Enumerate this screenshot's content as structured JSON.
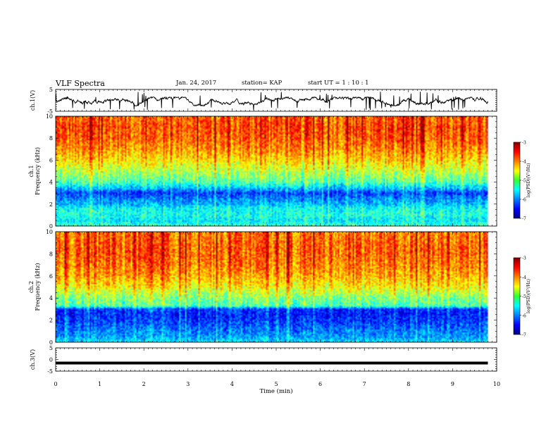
{
  "header": {
    "title": "VLF Spectra",
    "date": "Jan. 24, 2017",
    "station": "station= KAP",
    "start_ut": "start  UT =   1 : 10 : 1"
  },
  "chart_data": [
    {
      "type": "line",
      "panel": "ch1-waveform",
      "ylabel": "ch.1(V)",
      "ylim": [
        -5,
        5
      ],
      "yticks": [
        "5",
        "-5"
      ],
      "xlim": [
        0,
        10
      ],
      "data_extent_min": [
        0,
        9.8
      ],
      "description_values": {
        "typical_range_v": [
          -2.5,
          1.5
        ]
      }
    },
    {
      "type": "heatmap",
      "panel": "ch1-spectrogram",
      "ylabel": "ch.1\nFrequency (kHz)",
      "ylim": [
        0,
        10
      ],
      "yticks": [
        "0",
        "2",
        "4",
        "6",
        "8",
        "10"
      ],
      "xlim": [
        0,
        10
      ],
      "data_extent_min": [
        0,
        9.8
      ],
      "colorbar": {
        "label": "log(PSD)(V²/Hz)",
        "range": [
          -7,
          -3
        ],
        "ticks": [
          "-3",
          "-4",
          "-5",
          "-6",
          "-7"
        ]
      },
      "profile_khz_logpsd": [
        [
          0,
          -5.3
        ],
        [
          0.5,
          -5.6
        ],
        [
          1,
          -5.4
        ],
        [
          1.6,
          -5.5
        ],
        [
          2,
          -5.8
        ],
        [
          2.5,
          -6.0
        ],
        [
          3,
          -6.3
        ],
        [
          3.5,
          -5.7
        ],
        [
          4,
          -5.2
        ],
        [
          5,
          -4.8
        ],
        [
          6,
          -4.4
        ],
        [
          7,
          -4.1
        ],
        [
          8,
          -3.9
        ],
        [
          9,
          -3.8
        ],
        [
          10,
          -3.9
        ]
      ]
    },
    {
      "type": "heatmap",
      "panel": "ch2-spectrogram",
      "ylabel": "ch.2\nFrequency (kHz)",
      "ylim": [
        0,
        10
      ],
      "yticks": [
        "0",
        "2",
        "4",
        "6",
        "8",
        "10"
      ],
      "xlim": [
        0,
        10
      ],
      "data_extent_min": [
        0,
        9.8
      ],
      "colorbar": {
        "label": "log(PSD)(V²/Hz)",
        "range": [
          -7,
          -3
        ],
        "ticks": [
          "-3",
          "-4",
          "-5",
          "-6",
          "-7"
        ]
      },
      "profile_khz_logpsd": [
        [
          0,
          -5.6
        ],
        [
          0.5,
          -5.9
        ],
        [
          1,
          -6.0
        ],
        [
          1.6,
          -6.2
        ],
        [
          2,
          -6.3
        ],
        [
          2.5,
          -6.4
        ],
        [
          3,
          -6.3
        ],
        [
          3.3,
          -5.2
        ],
        [
          4,
          -5.0
        ],
        [
          5,
          -4.5
        ],
        [
          6,
          -4.2
        ],
        [
          7,
          -4.0
        ],
        [
          8,
          -3.9
        ],
        [
          9,
          -3.9
        ],
        [
          10,
          -4.0
        ]
      ]
    },
    {
      "type": "line",
      "panel": "ch3-waveform",
      "ylabel": "ch.3(V)",
      "ylim": [
        -5,
        5
      ],
      "yticks": [
        "5",
        "0",
        "-5"
      ],
      "xlim": [
        0,
        10
      ],
      "data_extent_min": [
        0,
        9.8
      ],
      "constant_value_v": -1.5
    }
  ],
  "xaxis": {
    "label": "Time (min)",
    "ticks": [
      "0",
      "1",
      "2",
      "3",
      "4",
      "5",
      "6",
      "7",
      "8",
      "9",
      "10"
    ]
  }
}
